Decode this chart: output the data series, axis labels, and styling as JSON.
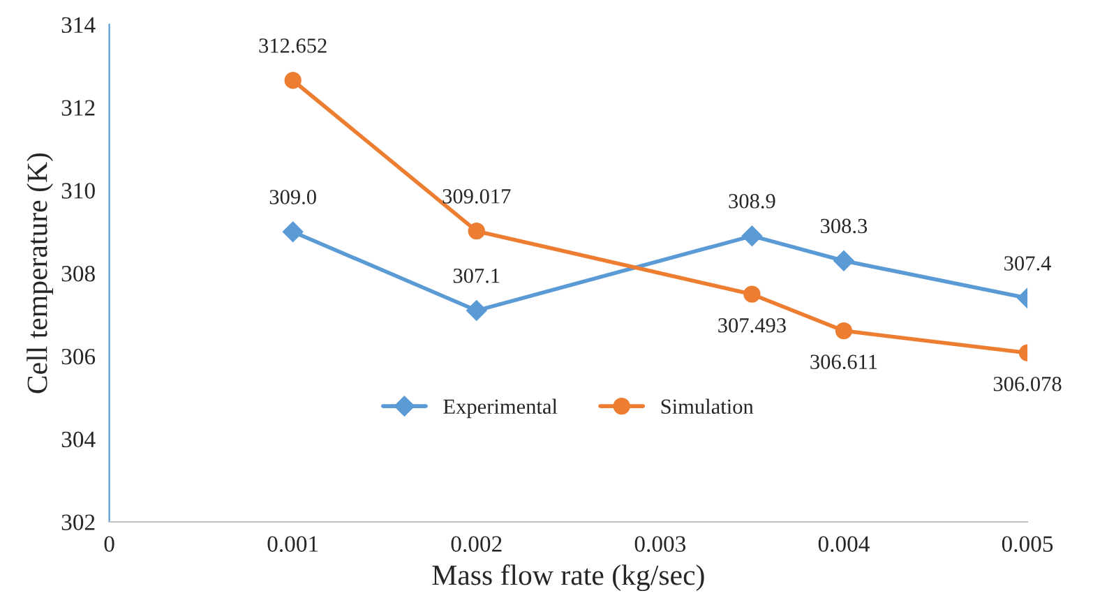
{
  "chart_data": {
    "type": "line",
    "xlabel": "Mass flow rate (kg/sec)",
    "ylabel": "Cell temperature (K)",
    "x": [
      0.001,
      0.002,
      0.0035,
      0.004,
      0.005
    ],
    "xlim": [
      0,
      0.005
    ],
    "xticks": [
      0,
      0.001,
      0.002,
      0.003,
      0.004,
      0.005
    ],
    "ylim": [
      302,
      314
    ],
    "yticks": [
      302,
      304,
      306,
      308,
      310,
      312,
      314
    ],
    "series": [
      {
        "name": "Experimental",
        "color": "#5b9bd5",
        "marker": "diamond",
        "values": [
          309.0,
          307.1,
          308.9,
          308.3,
          307.4
        ],
        "value_labels": [
          "309.0",
          "307.1",
          "308.9",
          "308.3",
          "307.4"
        ]
      },
      {
        "name": "Simulation",
        "color": "#ed7d31",
        "marker": "circle",
        "values": [
          312.652,
          309.017,
          307.493,
          306.611,
          306.078
        ],
        "value_labels": [
          "312.652",
          "309.017",
          "307.493",
          "306.611",
          "306.078"
        ]
      }
    ],
    "legend": "lower center",
    "grid": false,
    "line_style": "solid"
  }
}
